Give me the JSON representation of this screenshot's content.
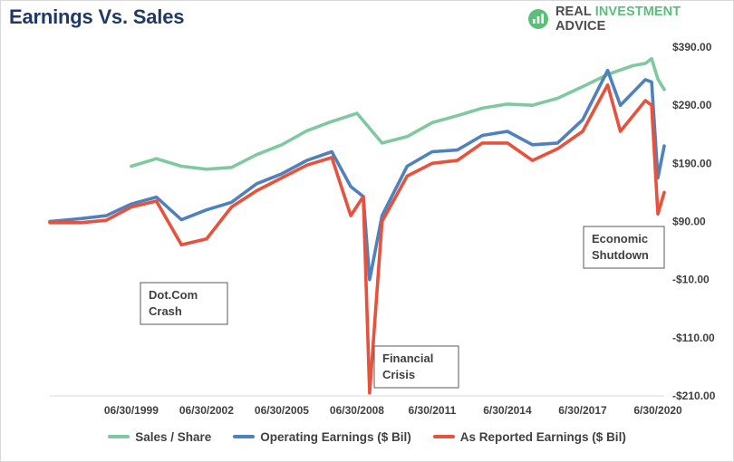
{
  "header": {
    "title": "Earnings Vs. Sales",
    "brand_primary": "REAL ",
    "brand_accent": "INVESTMENT",
    "brand_secondary": " ADVICE",
    "brand_icon": "chart-logo-icon",
    "brand_color": "#5bbf7a"
  },
  "chart_data": {
    "type": "line",
    "title": "Earnings Vs. Sales",
    "x_start": "1996-03-31",
    "x_end": "2020-09-30",
    "x_ticks": [
      {
        "date": "1999-06-30",
        "label": "06/30/1999"
      },
      {
        "date": "2002-06-30",
        "label": "06/30/2002"
      },
      {
        "date": "2005-06-30",
        "label": "06/30/2005"
      },
      {
        "date": "2008-06-30",
        "label": "06/30/2008"
      },
      {
        "date": "2011-06-30",
        "label": "6/30/2011"
      },
      {
        "date": "2014-06-30",
        "label": "6/30/2014"
      },
      {
        "date": "2017-06-30",
        "label": "6/30/2017"
      },
      {
        "date": "2020-06-30",
        "label": "6/30/2020"
      }
    ],
    "y_axis": {
      "min": -210,
      "max": 390,
      "position": "right",
      "ticks": [
        390,
        290,
        190,
        90,
        -10,
        -110,
        -210
      ],
      "tick_labels": [
        "$390.00",
        "$290.00",
        "$190.00",
        "$90.00",
        "-$10.00",
        "-$110.00",
        "-$210.00"
      ]
    },
    "grid": {
      "horizontal": false,
      "vertical": false
    },
    "legend_position": "bottom",
    "series": [
      {
        "name": "Sales / Share",
        "color": "#7fc8a0",
        "points": [
          [
            "1999-06-30",
            185
          ],
          [
            "2000-06-30",
            198
          ],
          [
            "2001-06-30",
            185
          ],
          [
            "2002-06-30",
            180
          ],
          [
            "2003-06-30",
            183
          ],
          [
            "2004-06-30",
            205
          ],
          [
            "2005-06-30",
            222
          ],
          [
            "2006-06-30",
            246
          ],
          [
            "2007-06-30",
            262
          ],
          [
            "2008-06-30",
            276
          ],
          [
            "2009-06-30",
            225
          ],
          [
            "2010-06-30",
            236
          ],
          [
            "2011-06-30",
            260
          ],
          [
            "2012-06-30",
            272
          ],
          [
            "2013-06-30",
            285
          ],
          [
            "2014-06-30",
            292
          ],
          [
            "2015-06-30",
            290
          ],
          [
            "2016-06-30",
            302
          ],
          [
            "2017-06-30",
            322
          ],
          [
            "2018-06-30",
            343
          ],
          [
            "2019-06-30",
            358
          ],
          [
            "2019-12-31",
            362
          ],
          [
            "2020-03-31",
            370
          ],
          [
            "2020-06-30",
            335
          ],
          [
            "2020-09-30",
            317
          ]
        ]
      },
      {
        "name": "Operating Earnings ($ Bil)",
        "color": "#4f81bd",
        "points": [
          [
            "1996-03-31",
            90
          ],
          [
            "1997-06-30",
            95
          ],
          [
            "1998-06-30",
            100
          ],
          [
            "1999-06-30",
            120
          ],
          [
            "2000-06-30",
            132
          ],
          [
            "2001-06-30",
            93
          ],
          [
            "2002-06-30",
            110
          ],
          [
            "2003-06-30",
            123
          ],
          [
            "2004-06-30",
            155
          ],
          [
            "2005-06-30",
            172
          ],
          [
            "2006-06-30",
            195
          ],
          [
            "2007-06-30",
            210
          ],
          [
            "2008-03-31",
            150
          ],
          [
            "2008-09-30",
            133
          ],
          [
            "2008-12-31",
            -10
          ],
          [
            "2009-06-30",
            100
          ],
          [
            "2010-06-30",
            185
          ],
          [
            "2011-06-30",
            210
          ],
          [
            "2012-06-30",
            213
          ],
          [
            "2013-06-30",
            238
          ],
          [
            "2014-06-30",
            245
          ],
          [
            "2015-06-30",
            222
          ],
          [
            "2016-06-30",
            225
          ],
          [
            "2017-06-30",
            265
          ],
          [
            "2018-06-30",
            350
          ],
          [
            "2018-12-31",
            290
          ],
          [
            "2019-12-31",
            334
          ],
          [
            "2020-03-31",
            330
          ],
          [
            "2020-06-30",
            165
          ],
          [
            "2020-09-30",
            220
          ]
        ]
      },
      {
        "name": "As Reported Earnings ($ Bil)",
        "color": "#e8513c",
        "points": [
          [
            "1996-03-31",
            88
          ],
          [
            "1997-06-30",
            88
          ],
          [
            "1998-06-30",
            92
          ],
          [
            "1999-06-30",
            115
          ],
          [
            "2000-06-30",
            125
          ],
          [
            "2001-06-30",
            50
          ],
          [
            "2002-06-30",
            60
          ],
          [
            "2003-06-30",
            115
          ],
          [
            "2004-06-30",
            143
          ],
          [
            "2005-06-30",
            165
          ],
          [
            "2006-06-30",
            187
          ],
          [
            "2007-06-30",
            200
          ],
          [
            "2008-03-31",
            100
          ],
          [
            "2008-09-30",
            133
          ],
          [
            "2008-12-31",
            -205
          ],
          [
            "2009-06-30",
            90
          ],
          [
            "2010-06-30",
            168
          ],
          [
            "2011-06-30",
            190
          ],
          [
            "2012-06-30",
            195
          ],
          [
            "2013-06-30",
            225
          ],
          [
            "2014-06-30",
            225
          ],
          [
            "2015-06-30",
            195
          ],
          [
            "2016-06-30",
            215
          ],
          [
            "2017-06-30",
            245
          ],
          [
            "2018-06-30",
            325
          ],
          [
            "2018-12-31",
            245
          ],
          [
            "2019-12-31",
            298
          ],
          [
            "2020-03-31",
            290
          ],
          [
            "2020-06-30",
            103
          ],
          [
            "2020-09-30",
            140
          ]
        ]
      }
    ],
    "annotations": [
      {
        "id": "dotcom",
        "lines": [
          "Dot.Com",
          "Crash"
        ]
      },
      {
        "id": "financial",
        "lines": [
          "Financial",
          "Crisis"
        ]
      },
      {
        "id": "shutdown",
        "lines": [
          "Economic",
          "Shutdown"
        ]
      }
    ]
  },
  "legend": {
    "items": [
      {
        "label": "Sales / Share",
        "color": "#7fc8a0"
      },
      {
        "label": "Operating Earnings ($ Bil)",
        "color": "#4f81bd"
      },
      {
        "label": "As Reported Earnings ($ Bil)",
        "color": "#e8513c"
      }
    ]
  }
}
